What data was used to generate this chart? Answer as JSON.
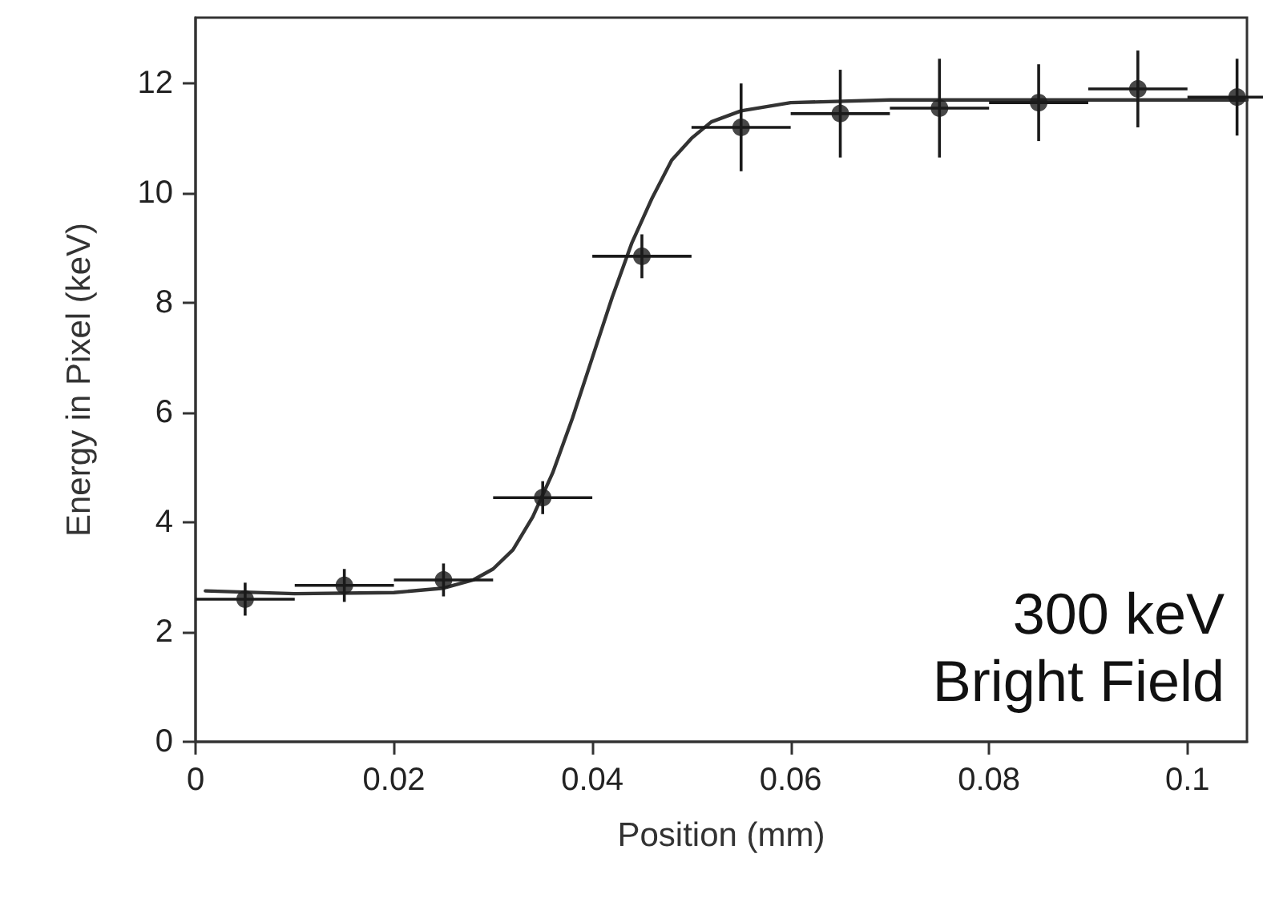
{
  "chart_data": {
    "type": "scatter",
    "xlabel": "Position (mm)",
    "ylabel": "Energy in Pixel (keV)",
    "annotations": [
      "300 keV",
      "Bright Field"
    ],
    "xlim": [
      0,
      0.106
    ],
    "xticks": [
      0,
      0.02,
      0.04,
      0.06,
      0.08,
      0.1
    ],
    "ylim": [
      0,
      13.2
    ],
    "yticks": [
      0,
      2,
      4,
      6,
      8,
      10,
      12
    ],
    "marker": "circle",
    "series": [
      {
        "color": "#1a1a1a",
        "x": [
          0.005,
          0.015,
          0.025,
          0.035,
          0.045,
          0.055,
          0.065,
          0.075,
          0.085,
          0.095,
          0.105
        ],
        "values": [
          2.6,
          2.85,
          2.95,
          4.45,
          8.85,
          11.2,
          11.45,
          11.55,
          11.65,
          11.9,
          11.75
        ],
        "errors": [
          0.3,
          0.3,
          0.3,
          0.3,
          0.4,
          0.8,
          0.8,
          0.9,
          0.7,
          0.7,
          0.7
        ],
        "xerrors": [
          0.005,
          0.005,
          0.005,
          0.005,
          0.005,
          0.005,
          0.005,
          0.005,
          0.005,
          0.005,
          0.005
        ]
      },
      {
        "type": "line",
        "color": "#333333",
        "line_style": "solid",
        "marker": "none",
        "x": [
          0.001,
          0.01,
          0.02,
          0.025,
          0.028,
          0.03,
          0.032,
          0.034,
          0.036,
          0.038,
          0.04,
          0.042,
          0.044,
          0.046,
          0.048,
          0.05,
          0.052,
          0.055,
          0.06,
          0.07,
          0.08,
          0.106
        ],
        "values": [
          2.75,
          2.7,
          2.72,
          2.8,
          2.95,
          3.15,
          3.5,
          4.1,
          4.9,
          5.9,
          7.0,
          8.1,
          9.1,
          9.9,
          10.6,
          11.0,
          11.3,
          11.5,
          11.65,
          11.7,
          11.7,
          11.7
        ]
      }
    ]
  }
}
